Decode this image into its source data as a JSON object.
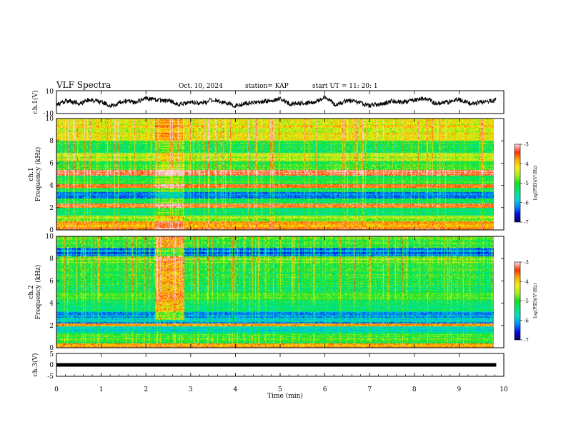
{
  "header": {
    "title": "VLF Spectra",
    "date": "Oct. 10, 2024",
    "station": "station= KAP",
    "start": "start  UT =   11: 20: 1"
  },
  "colors": {
    "spectrum_stops": [
      "#08006e",
      "#0010e0",
      "#0090ff",
      "#00ddcc",
      "#00e87a",
      "#10e020",
      "#a6f020",
      "#f4f010",
      "#ffb000",
      "#ff3000",
      "#ffd8d8"
    ],
    "trace": "#000000",
    "background": "#ffffff"
  },
  "chart_data": [
    {
      "id": "ch1_waveform",
      "type": "line",
      "ylabel": "ch.1(V)",
      "ylim": [
        -10,
        10
      ],
      "yticks": [
        "10",
        "-10"
      ],
      "x_minutes": [
        0,
        0.25,
        0.5,
        0.75,
        1.0,
        1.25,
        1.5,
        1.75,
        2.0,
        2.25,
        2.5,
        2.75,
        3.0,
        3.25,
        3.5,
        3.75,
        4.0,
        4.25,
        4.5,
        4.75,
        5.0,
        5.25,
        5.5,
        5.75,
        6.0,
        6.25,
        6.5,
        6.75,
        7.0,
        7.25,
        7.5,
        7.75,
        8.0,
        8.25,
        8.5,
        8.75,
        9.0,
        9.25,
        9.5,
        9.75,
        9.83
      ],
      "values_v": [
        -2,
        1,
        -1,
        2,
        0,
        -3,
        1,
        0,
        3,
        2,
        1,
        -2,
        0,
        -1,
        2,
        0,
        -3,
        -1,
        0,
        1,
        3,
        -2,
        -1,
        0,
        4,
        -2,
        1,
        0,
        -3,
        -2,
        1,
        0,
        2,
        3,
        -1,
        0,
        2,
        -1,
        0,
        1,
        2
      ]
    },
    {
      "id": "ch1_spectrogram",
      "type": "heatmap",
      "ylabel": "ch.1\nFrequency (kHz)",
      "ylim_khz": [
        0,
        10
      ],
      "yticks": [
        "0",
        "2",
        "4",
        "6",
        "8",
        "10"
      ],
      "colorbar": {
        "label": "log(PSD)(V²/Hz)",
        "range": [
          -7,
          -3
        ],
        "ticks": [
          "-3",
          "-4",
          "-5",
          "-6",
          "-7"
        ]
      },
      "bands_khz": [
        {
          "f": [
            0,
            0.3
          ],
          "v": -3.6
        },
        {
          "f": [
            0.3,
            0.8
          ],
          "v": -3.9
        },
        {
          "f": [
            0.8,
            1.3
          ],
          "v": -4.6
        },
        {
          "f": [
            1.3,
            2.0
          ],
          "v": -5.4
        },
        {
          "f": [
            2.0,
            2.4
          ],
          "v": -3.6
        },
        {
          "f": [
            2.4,
            2.8
          ],
          "v": -5.3
        },
        {
          "f": [
            2.8,
            3.4
          ],
          "v": -6.1
        },
        {
          "f": [
            3.4,
            3.8
          ],
          "v": -5.2
        },
        {
          "f": [
            3.8,
            4.1
          ],
          "v": -3.4
        },
        {
          "f": [
            4.1,
            4.9
          ],
          "v": -5.1
        },
        {
          "f": [
            4.9,
            5.4
          ],
          "v": -3.2
        },
        {
          "f": [
            5.4,
            6.2
          ],
          "v": -5.0
        },
        {
          "f": [
            6.2,
            6.9
          ],
          "v": -4.4
        },
        {
          "f": [
            6.9,
            8.0
          ],
          "v": -5.1
        },
        {
          "f": [
            8.0,
            10.0
          ],
          "v": -4.2
        }
      ],
      "bursts": [
        {
          "t": [
            2.2,
            2.85
          ],
          "f": [
            0,
            10
          ],
          "dv": 0.5
        }
      ]
    },
    {
      "id": "ch2_spectrogram",
      "type": "heatmap",
      "ylabel": "ch.2\nFrequency (kHz)",
      "ylim_khz": [
        0,
        10
      ],
      "yticks": [
        "0",
        "2",
        "4",
        "6",
        "8",
        "10"
      ],
      "colorbar": {
        "label": "log(PSD)(V²/Hz)",
        "range": [
          -7,
          -3
        ],
        "ticks": [
          "-3",
          "-4",
          "-5",
          "-6",
          "-7"
        ]
      },
      "bands_khz": [
        {
          "f": [
            0,
            0.4
          ],
          "v": -3.8
        },
        {
          "f": [
            0.4,
            1.2
          ],
          "v": -5.0
        },
        {
          "f": [
            1.2,
            1.9
          ],
          "v": -5.6
        },
        {
          "f": [
            1.9,
            2.2
          ],
          "v": -3.7
        },
        {
          "f": [
            2.2,
            3.2
          ],
          "v": -6.0
        },
        {
          "f": [
            3.2,
            4.2
          ],
          "v": -5.3
        },
        {
          "f": [
            4.2,
            5.0
          ],
          "v": -5.0
        },
        {
          "f": [
            5.0,
            6.2
          ],
          "v": -5.2
        },
        {
          "f": [
            6.2,
            7.6
          ],
          "v": -5.1
        },
        {
          "f": [
            7.6,
            8.2
          ],
          "v": -4.8
        },
        {
          "f": [
            8.2,
            9.0
          ],
          "v": -6.2
        },
        {
          "f": [
            9.0,
            10.0
          ],
          "v": -5.0
        }
      ],
      "bursts": [
        {
          "t": [
            2.2,
            2.85
          ],
          "f": [
            2.5,
            10
          ],
          "dv": 1.5
        }
      ]
    },
    {
      "id": "ch3_waveform",
      "type": "line",
      "ylabel": "ch.3(V)",
      "ylim": [
        -5,
        5
      ],
      "yticks": [
        "5",
        "0",
        "-5"
      ],
      "x_minutes": [
        0,
        9.83
      ],
      "values_v": [
        0,
        0
      ]
    }
  ],
  "xaxis": {
    "label": "Time (min)",
    "range_min": [
      0,
      10
    ],
    "ticks": [
      "0",
      "1",
      "2",
      "3",
      "4",
      "5",
      "6",
      "7",
      "8",
      "9",
      "10"
    ]
  }
}
